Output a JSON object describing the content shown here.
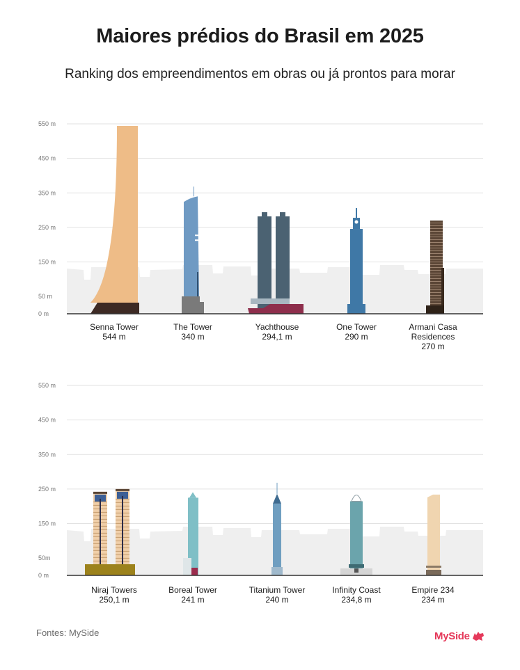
{
  "header": {
    "title": "Maiores prédios do Brasil em 2025",
    "subtitle": "Ranking dos empreendimentos em obras ou já prontos para morar"
  },
  "footer": {
    "source": "Fontes: MySide",
    "brand": "MySide"
  },
  "colors": {
    "gridline": "#e2e2e2",
    "skyline": "#efefef",
    "baseline": "#333333",
    "brand": "#e5395a"
  },
  "chart_data": [
    {
      "type": "bar",
      "ylim": [
        0,
        550
      ],
      "grid": true,
      "ytick_labels": [
        "550 m",
        "450 m",
        "350 m",
        "250 m",
        "150 m",
        "50 m",
        "0 m"
      ],
      "ytick_values": [
        550,
        450,
        350,
        250,
        150,
        50,
        0
      ],
      "categories": [
        {
          "name": "Senna Tower",
          "height_label": "544 m",
          "value": 544,
          "color": "#eebc87",
          "base_color": "#3d2a24",
          "shape": "senna"
        },
        {
          "name": "The Tower",
          "height_label": "340 m",
          "value": 340,
          "color": "#6f9ac3",
          "base_color": "#7a7a7a",
          "shape": "thetower"
        },
        {
          "name": "Yachthouse",
          "height_label": "294,1 m",
          "value": 294.1,
          "color": "#4b6272",
          "base_color": "#8e2e4c",
          "shape": "twin"
        },
        {
          "name": "One Tower",
          "height_label": "290 m",
          "value": 290,
          "color": "#3f78a6",
          "base_color": "#3f78a6",
          "shape": "onetower"
        },
        {
          "name": "Armani Casa Residences",
          "height_label": "270 m",
          "value": 270,
          "color": "#5a4535",
          "base_color": "#2e2218",
          "shape": "armani"
        }
      ]
    },
    {
      "type": "bar",
      "ylim": [
        0,
        550
      ],
      "grid": true,
      "ytick_labels": [
        "550 m",
        "450 m",
        "350 m",
        "250 m",
        "150 m",
        "50m",
        "0 m"
      ],
      "ytick_values": [
        550,
        450,
        350,
        250,
        150,
        50,
        0
      ],
      "categories": [
        {
          "name": "Niraj Towers",
          "height_label": "250,1 m",
          "value": 250.1,
          "color": "#f0cfa9",
          "base_color": "#9c821c",
          "shape": "niraj"
        },
        {
          "name": "Boreal Tower",
          "height_label": "241 m",
          "value": 241,
          "color": "#7fbfc6",
          "base_color": "#9b2c4d",
          "shape": "boreal"
        },
        {
          "name": "Titanium Tower",
          "height_label": "240 m",
          "value": 240,
          "color": "#6f9ec0",
          "base_color": "#9fb9cc",
          "shape": "titanium"
        },
        {
          "name": "Infinity Coast",
          "height_label": "234,8 m",
          "value": 234.8,
          "color": "#6ba4ac",
          "base_color": "#d5d5d5",
          "shape": "infinity"
        },
        {
          "name": "Empire 234",
          "height_label": "234 m",
          "value": 234,
          "color": "#f0d5b0",
          "base_color": "#7a6a5a",
          "shape": "empire"
        }
      ]
    }
  ]
}
